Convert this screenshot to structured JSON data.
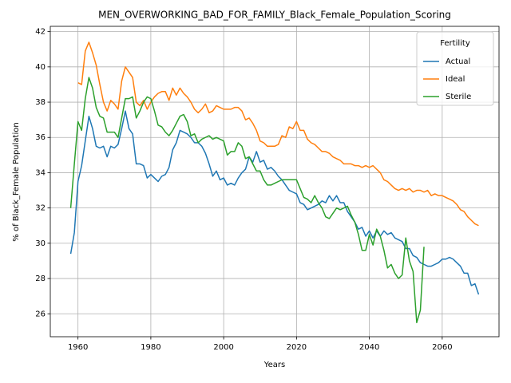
{
  "chart_data": {
    "type": "line",
    "title": "MEN_OVERWORKING_BAD_FOR_FAMILY_Black_Female_Population_Scoring",
    "x_label": "Years",
    "y_label": "% of Black_Female Population",
    "x": [
      1958,
      1959,
      1960,
      1961,
      1962,
      1963,
      1964,
      1965,
      1966,
      1967,
      1968,
      1969,
      1970,
      1971,
      1972,
      1973,
      1974,
      1975,
      1976,
      1977,
      1978,
      1979,
      1980,
      1981,
      1982,
      1983,
      1984,
      1985,
      1986,
      1987,
      1988,
      1989,
      1990,
      1991,
      1992,
      1993,
      1994,
      1995,
      1996,
      1997,
      1998,
      1999,
      2000,
      2001,
      2002,
      2003,
      2004,
      2005,
      2006,
      2007,
      2008,
      2009,
      2010,
      2011,
      2012,
      2013,
      2014,
      2015,
      2016,
      2017,
      2018,
      2019,
      2020,
      2021,
      2022,
      2023,
      2024,
      2025,
      2026,
      2027,
      2028,
      2029,
      2030,
      2031,
      2032,
      2033,
      2034,
      2035,
      2036,
      2037,
      2038,
      2039,
      2040,
      2041,
      2042,
      2043,
      2044,
      2045,
      2046,
      2047,
      2048,
      2049,
      2050,
      2051,
      2052,
      2053,
      2054,
      2055,
      2056,
      2057,
      2058,
      2059,
      2060,
      2061,
      2062,
      2063,
      2064,
      2065,
      2066,
      2067,
      2068,
      2069,
      2070
    ],
    "series": [
      {
        "name": "Actual",
        "color": "#1f77b4",
        "values": [
          29.4,
          30.6,
          33.5,
          34.4,
          35.8,
          37.2,
          36.5,
          35.5,
          35.4,
          35.5,
          34.9,
          35.5,
          35.4,
          35.6,
          36.5,
          37.5,
          36.5,
          36.2,
          34.5,
          34.5,
          34.4,
          33.7,
          33.9,
          33.7,
          33.5,
          33.8,
          33.9,
          34.3,
          35.3,
          35.7,
          36.4,
          36.3,
          36.2,
          36.0,
          35.7,
          35.7,
          35.5,
          35.1,
          34.5,
          33.8,
          34.1,
          33.6,
          33.7,
          33.3,
          33.4,
          33.3,
          33.7,
          34.0,
          34.2,
          34.9,
          34.6,
          35.2,
          34.6,
          34.7,
          34.2,
          34.3,
          34.1,
          33.8,
          33.6,
          33.3,
          33.0,
          32.9,
          32.8,
          32.3,
          32.2,
          31.9,
          32.0,
          32.1,
          32.2,
          32.4,
          32.3,
          32.7,
          32.4,
          32.7,
          32.3,
          32.3,
          31.8,
          31.5,
          31.2,
          30.8,
          30.9,
          30.4,
          30.7,
          30.3,
          30.7,
          30.4,
          30.7,
          30.5,
          30.6,
          30.3,
          30.2,
          30.1,
          29.7,
          29.7,
          29.3,
          29.2,
          28.9,
          28.8,
          28.7,
          28.7,
          28.8,
          28.9,
          29.1,
          29.1,
          29.2,
          29.1,
          28.9,
          28.7,
          28.3,
          28.3,
          27.6,
          27.7,
          27.1
        ]
      },
      {
        "name": "Ideal",
        "color": "#ff7f0e",
        "values": [
          null,
          null,
          39.1,
          39.0,
          40.9,
          41.4,
          40.8,
          40.1,
          39.0,
          38.0,
          37.5,
          38.1,
          37.9,
          37.6,
          39.2,
          40.0,
          39.7,
          39.4,
          38.0,
          37.8,
          38.1,
          37.6,
          38.0,
          38.3,
          38.5,
          38.6,
          38.6,
          38.1,
          38.8,
          38.4,
          38.8,
          38.5,
          38.3,
          38.0,
          37.6,
          37.4,
          37.6,
          37.9,
          37.4,
          37.5,
          37.8,
          37.7,
          37.6,
          37.6,
          37.6,
          37.7,
          37.7,
          37.5,
          37.0,
          37.1,
          36.8,
          36.4,
          35.8,
          35.7,
          35.5,
          35.5,
          35.5,
          35.6,
          36.1,
          36.0,
          36.6,
          36.5,
          36.9,
          36.4,
          36.4,
          35.9,
          35.7,
          35.6,
          35.4,
          35.2,
          35.2,
          35.1,
          34.9,
          34.8,
          34.7,
          34.5,
          34.5,
          34.5,
          34.4,
          34.4,
          34.3,
          34.4,
          34.3,
          34.4,
          34.2,
          34.0,
          33.6,
          33.5,
          33.3,
          33.1,
          33.0,
          33.1,
          33.0,
          33.1,
          32.9,
          33.0,
          33.0,
          32.9,
          33.0,
          32.7,
          32.8,
          32.7,
          32.7,
          32.6,
          32.5,
          32.4,
          32.2,
          31.9,
          31.8,
          31.5,
          31.3,
          31.1,
          31.0
        ]
      },
      {
        "name": "Sterile",
        "color": "#2ca02c",
        "values": [
          32.0,
          34.5,
          36.9,
          36.4,
          38.2,
          39.4,
          38.8,
          37.7,
          37.2,
          37.1,
          36.3,
          36.3,
          36.3,
          36.0,
          37.1,
          38.2,
          38.2,
          38.3,
          37.1,
          37.5,
          38.0,
          38.3,
          38.2,
          37.5,
          36.7,
          36.6,
          36.3,
          36.1,
          36.4,
          36.8,
          37.2,
          37.3,
          36.9,
          36.1,
          36.2,
          35.7,
          35.9,
          36.0,
          36.1,
          35.9,
          36.0,
          35.9,
          35.8,
          35.0,
          35.2,
          35.2,
          35.7,
          35.5,
          34.8,
          34.9,
          34.5,
          34.1,
          34.1,
          33.6,
          33.3,
          33.3,
          33.4,
          33.5,
          33.6,
          33.6,
          33.6,
          33.6,
          33.6,
          33.1,
          32.6,
          32.5,
          32.3,
          32.7,
          32.3,
          32.0,
          31.5,
          31.4,
          31.7,
          32.0,
          31.9,
          32.0,
          32.1,
          31.6,
          31.2,
          30.5,
          29.6,
          29.6,
          30.5,
          29.9,
          30.8,
          30.4,
          29.6,
          28.6,
          28.8,
          28.3,
          28.0,
          28.2,
          30.3,
          29.0,
          28.4,
          25.5,
          26.2,
          29.8,
          null,
          null,
          null,
          null,
          null,
          null,
          null,
          null,
          null,
          null,
          null,
          null,
          null,
          null,
          null
        ]
      }
    ],
    "xlim": [
      1952.4,
      2075.6
    ],
    "ylim": [
      24.7,
      42.3
    ],
    "xticks": [
      1960,
      1980,
      2000,
      2020,
      2040,
      2060
    ],
    "yticks": [
      26,
      28,
      30,
      32,
      34,
      36,
      38,
      40,
      42
    ],
    "grid": true,
    "legend_title": "Fertility",
    "legend_position": "upper right"
  }
}
